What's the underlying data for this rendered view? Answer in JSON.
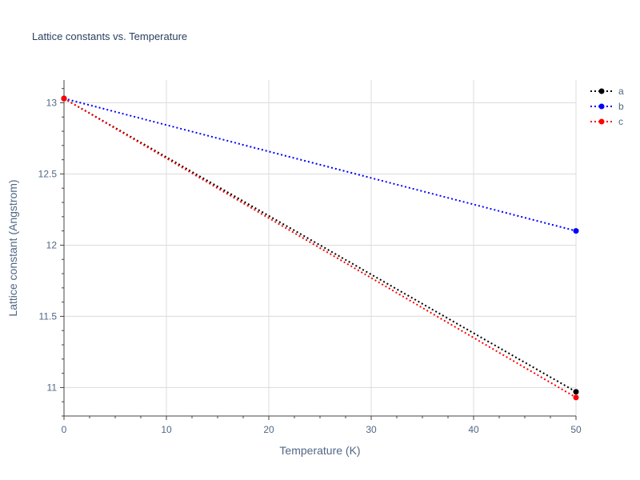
{
  "chart_data": {
    "type": "line",
    "title": "Lattice constants vs. Temperature",
    "xlabel": "Temperature (K)",
    "ylabel": "Lattice constant (Angstrom)",
    "xlim": [
      0,
      50
    ],
    "ylim": [
      10.8,
      13.16
    ],
    "x_ticks": [
      0,
      10,
      20,
      30,
      40,
      50
    ],
    "x_tick_labels": [
      "0",
      "10",
      "20",
      "30",
      "40",
      "50"
    ],
    "y_ticks": [
      11,
      11.5,
      12,
      12.5,
      13
    ],
    "y_tick_labels": [
      "11",
      "11.5",
      "12",
      "12.5",
      "13"
    ],
    "grid": true,
    "legend_position": "top-right",
    "x": [
      0,
      50
    ],
    "series": [
      {
        "name": "a",
        "color": "#000000",
        "values": [
          13.03,
          10.97
        ]
      },
      {
        "name": "b",
        "color": "#0000ff",
        "values": [
          13.03,
          12.1
        ]
      },
      {
        "name": "c",
        "color": "#ff0000",
        "values": [
          13.03,
          10.93
        ]
      }
    ]
  }
}
